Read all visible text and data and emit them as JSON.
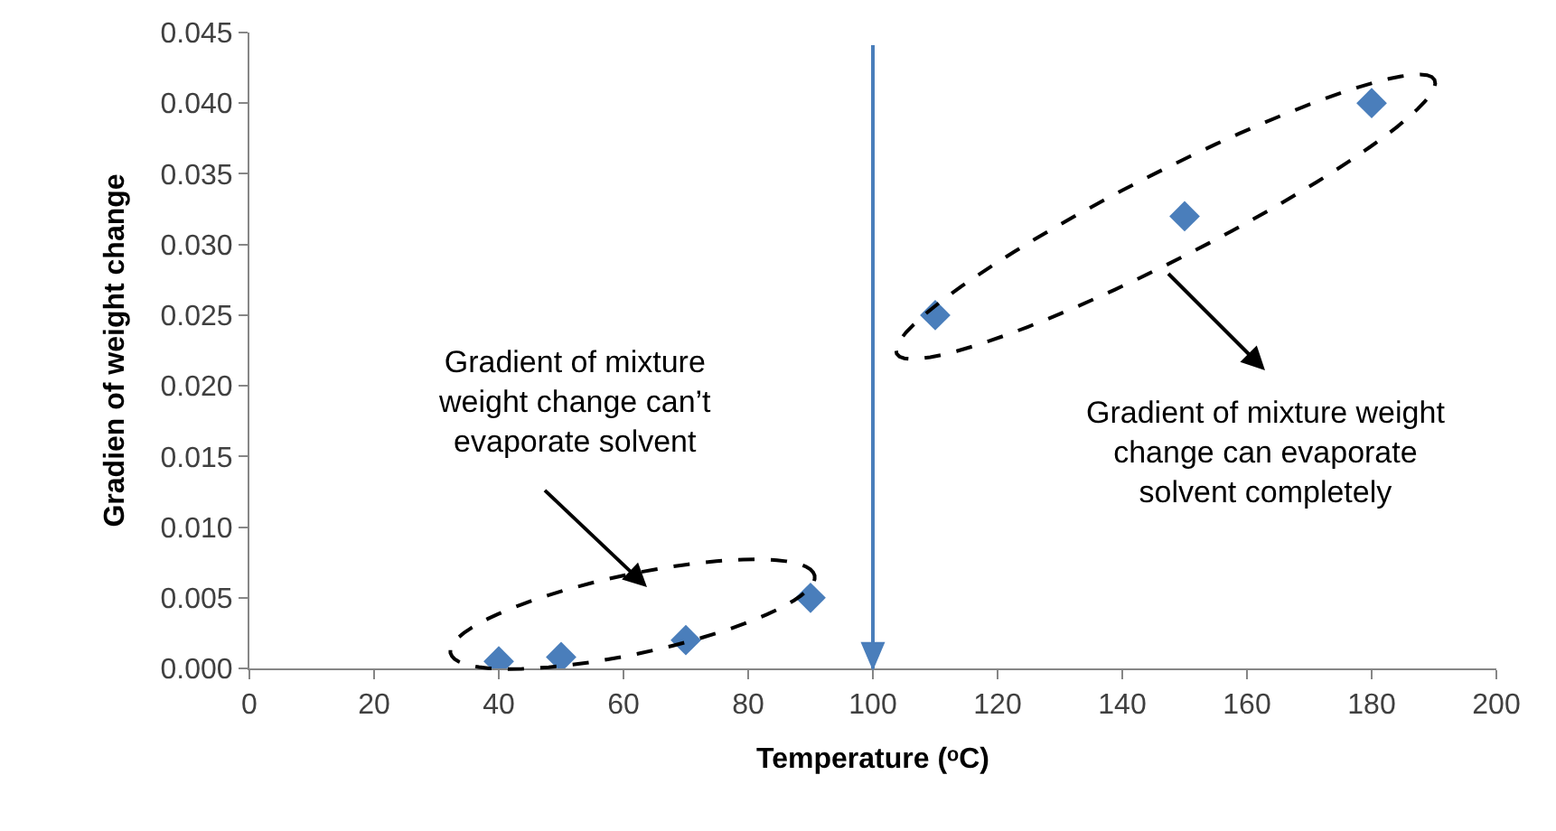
{
  "chart_data": {
    "type": "scatter",
    "xlabel": "Temperature (ᵒC)",
    "ylabel": "Gradien of weight change",
    "x": [
      40,
      50,
      70,
      90,
      110,
      150,
      180
    ],
    "values": [
      0.0005,
      0.0008,
      0.002,
      0.005,
      0.025,
      0.032,
      0.04
    ],
    "color": "#4a7ebb",
    "marker": "diamond",
    "xlim": [
      0,
      200
    ],
    "xticks": [
      0,
      20,
      40,
      60,
      80,
      100,
      120,
      140,
      160,
      180,
      200
    ],
    "ylim": [
      0,
      0.045
    ],
    "yticks": [
      {
        "value": 0,
        "label": "0.000"
      },
      {
        "value": 0.005,
        "label": "0.005"
      },
      {
        "value": 0.01,
        "label": "0.010"
      },
      {
        "value": 0.015,
        "label": "0.015"
      },
      {
        "value": 0.02,
        "label": "0.020"
      },
      {
        "value": 0.025,
        "label": "0.025"
      },
      {
        "value": 0.03,
        "label": "0.030"
      },
      {
        "value": 0.035,
        "label": "0.035"
      },
      {
        "value": 0.04,
        "label": "0.040"
      },
      {
        "value": 0.045,
        "label": "0.045"
      }
    ],
    "ref_lines": [
      {
        "axis": "x",
        "value": 100,
        "color": "#4a7ebb"
      }
    ],
    "annotations": [
      "Gradient of mixture\nweight change can’t\nevaporate solvent",
      "Gradient of mixture weight\nchange can evaporate\nsolvent completely"
    ]
  }
}
